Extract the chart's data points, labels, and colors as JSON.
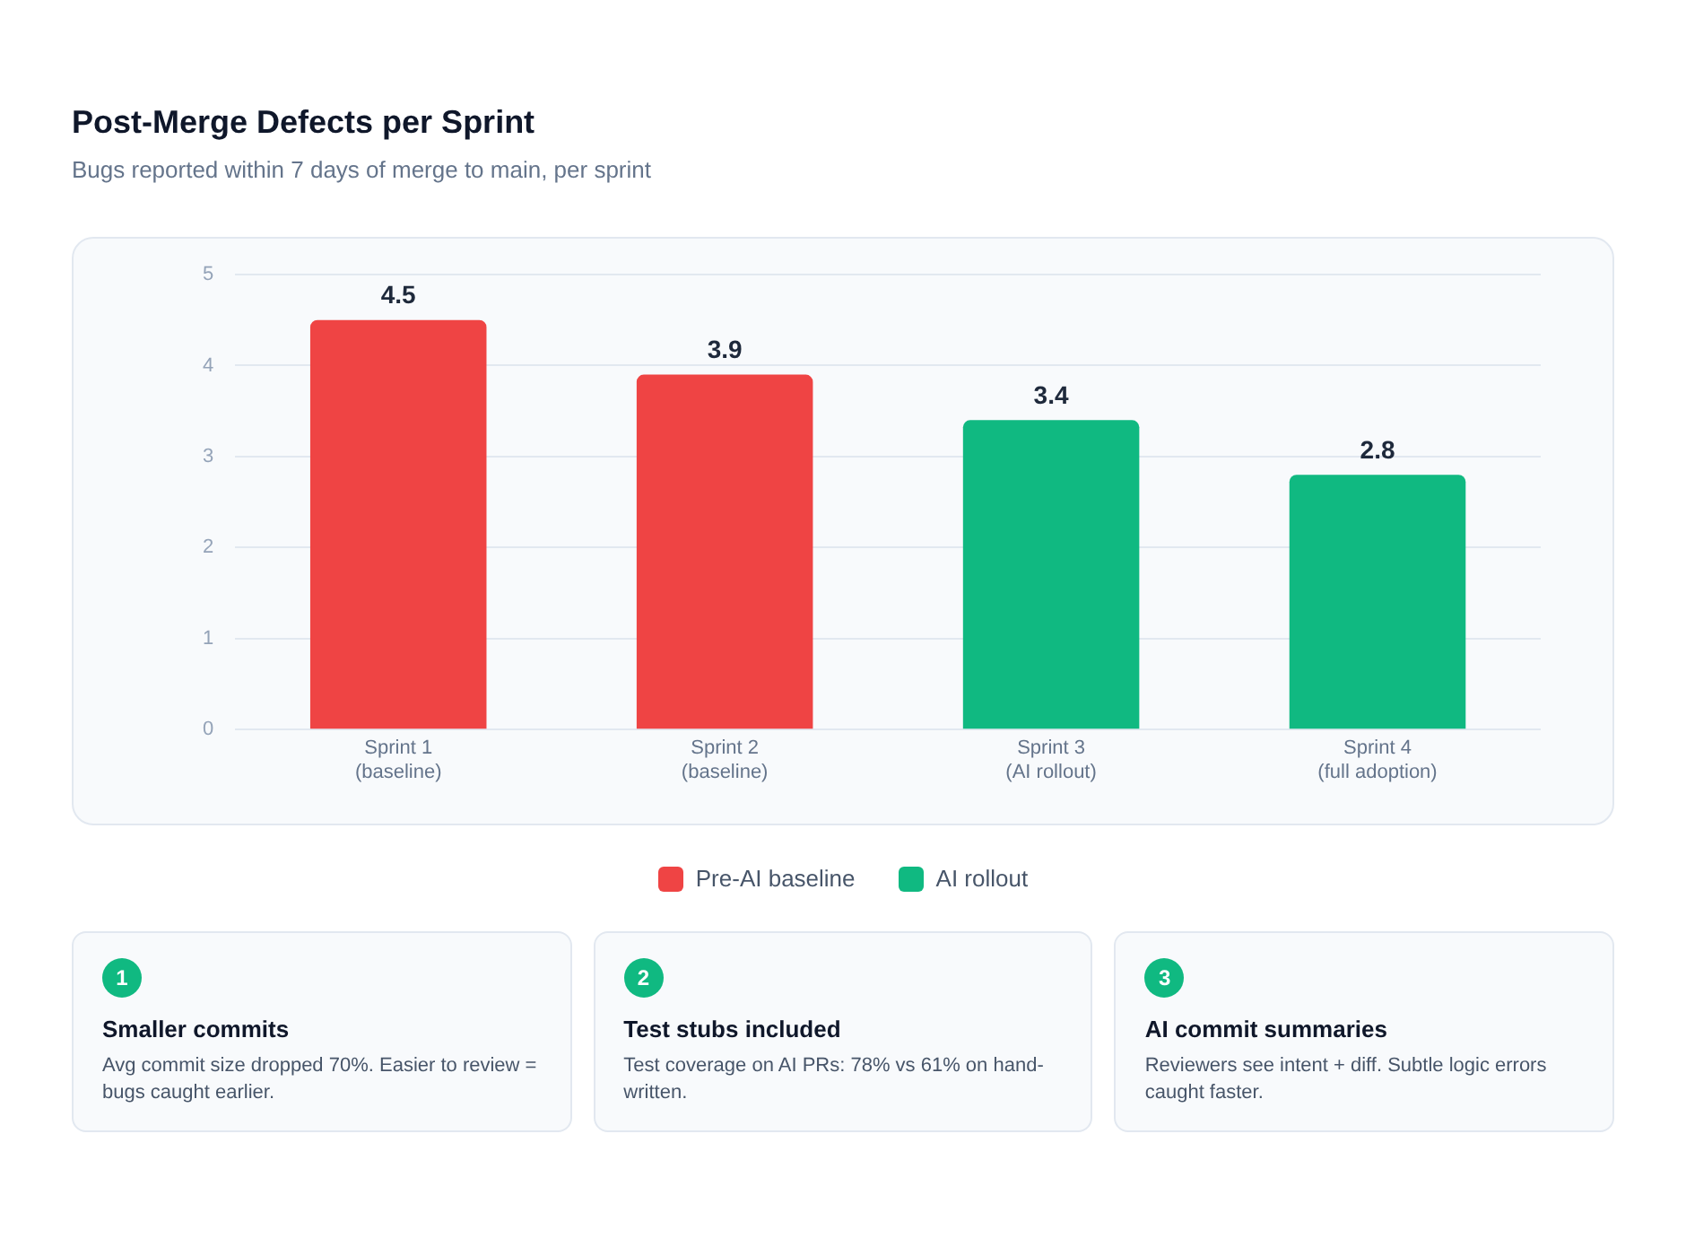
{
  "chart_data": {
    "type": "bar",
    "title": "Post-Merge Defects per Sprint",
    "subtitle": "Bugs reported within 7 days of merge to main, per sprint",
    "categories": [
      "Sprint 1\n(baseline)",
      "Sprint 2\n(baseline)",
      "Sprint 3\n(AI rollout)",
      "Sprint 4\n(full adoption)"
    ],
    "series": [
      {
        "name": "Pre-AI baseline",
        "color": "#ef4444",
        "values": [
          4.5,
          3.9,
          null,
          null
        ]
      },
      {
        "name": "AI rollout",
        "color": "#10b981",
        "values": [
          null,
          null,
          3.4,
          2.8
        ]
      }
    ],
    "ylim": [
      0,
      5
    ],
    "yticks": [
      0,
      1,
      2,
      3,
      4,
      5
    ],
    "grid": "y",
    "legend": "bottom",
    "data_labels": true,
    "annotations": [
      "1",
      "Smaller commits",
      "Avg commit size dropped 70%. Easier to review = bugs caught earlier.",
      "2",
      "Test stubs included",
      "Test coverage on AI PRs: 78% vs 61% on hand-written.",
      "3",
      "AI commit summaries",
      "Reviewers see intent + diff. Subtle logic errors caught faster."
    ]
  }
}
